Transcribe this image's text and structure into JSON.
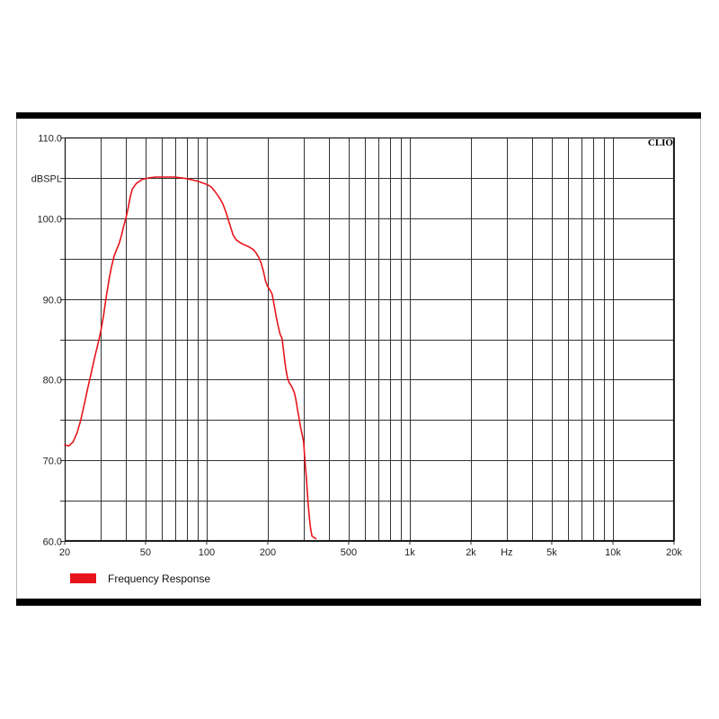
{
  "chart_data": {
    "type": "line",
    "brand": "CLIO",
    "x_scale": "log",
    "xlim": [
      20,
      20000
    ],
    "ylim": [
      60,
      110
    ],
    "ylabel": "dBSPL",
    "x_unit_label": "Hz",
    "grid": true,
    "x_ticks": [
      {
        "value": 20,
        "label": "20"
      },
      {
        "value": 50,
        "label": "50"
      },
      {
        "value": 100,
        "label": "100"
      },
      {
        "value": 200,
        "label": "200"
      },
      {
        "value": 500,
        "label": "500"
      },
      {
        "value": 1000,
        "label": "1k"
      },
      {
        "value": 2000,
        "label": "2k"
      },
      {
        "value": 5000,
        "label": "5k"
      },
      {
        "value": 10000,
        "label": "10k"
      },
      {
        "value": 20000,
        "label": "20k"
      }
    ],
    "x_gridlines": [
      20,
      30,
      40,
      50,
      60,
      70,
      80,
      90,
      100,
      200,
      300,
      400,
      500,
      600,
      700,
      800,
      900,
      1000,
      2000,
      3000,
      4000,
      5000,
      6000,
      7000,
      8000,
      9000,
      10000,
      20000
    ],
    "y_ticks": [
      {
        "value": 110,
        "label": "110.0"
      },
      {
        "value": 105,
        "label": "dBSPL"
      },
      {
        "value": 100,
        "label": "100.0"
      },
      {
        "value": 95,
        "label": ""
      },
      {
        "value": 90,
        "label": "90.0"
      },
      {
        "value": 85,
        "label": ""
      },
      {
        "value": 80,
        "label": "80.0"
      },
      {
        "value": 75,
        "label": ""
      },
      {
        "value": 70,
        "label": "70.0"
      },
      {
        "value": 65,
        "label": ""
      },
      {
        "value": 60,
        "label": "60.0"
      }
    ],
    "legend": {
      "position": "bottom-left"
    },
    "series": [
      {
        "name": "Frequency Response",
        "color": "#e8141b",
        "points": [
          [
            20,
            71.9
          ],
          [
            21,
            71.8
          ],
          [
            22,
            72.3
          ],
          [
            23,
            73.4
          ],
          [
            24,
            75
          ],
          [
            25,
            77
          ],
          [
            26,
            79
          ],
          [
            27,
            80.8
          ],
          [
            28,
            82.6
          ],
          [
            29,
            84.2
          ],
          [
            30,
            85.8
          ],
          [
            31,
            87.8
          ],
          [
            32,
            90.2
          ],
          [
            33,
            92.3
          ],
          [
            34,
            94
          ],
          [
            35,
            95.3
          ],
          [
            36,
            96.1
          ],
          [
            37,
            96.8
          ],
          [
            38,
            97.8
          ],
          [
            39,
            99
          ],
          [
            40,
            100
          ],
          [
            41,
            101.2
          ],
          [
            42,
            102.6
          ],
          [
            43,
            103.6
          ],
          [
            45,
            104.3
          ],
          [
            48,
            104.8
          ],
          [
            52,
            105
          ],
          [
            56,
            105.1
          ],
          [
            60,
            105.1
          ],
          [
            70,
            105.1
          ],
          [
            80,
            104.9
          ],
          [
            90,
            104.6
          ],
          [
            100,
            104.2
          ],
          [
            105,
            103.9
          ],
          [
            110,
            103.3
          ],
          [
            115,
            102.6
          ],
          [
            120,
            101.8
          ],
          [
            125,
            100.6
          ],
          [
            130,
            99.2
          ],
          [
            135,
            97.9
          ],
          [
            140,
            97.3
          ],
          [
            150,
            96.8
          ],
          [
            160,
            96.5
          ],
          [
            170,
            96.1
          ],
          [
            175,
            95.7
          ],
          [
            180,
            95.2
          ],
          [
            185,
            94.5
          ],
          [
            190,
            93.5
          ],
          [
            195,
            92.2
          ],
          [
            200,
            91.5
          ],
          [
            205,
            91.1
          ],
          [
            210,
            90.6
          ],
          [
            215,
            89.2
          ],
          [
            220,
            87.8
          ],
          [
            225,
            86.6
          ],
          [
            230,
            85.6
          ],
          [
            235,
            85.1
          ],
          [
            240,
            83.2
          ],
          [
            245,
            81.4
          ],
          [
            250,
            80.2
          ],
          [
            255,
            79.6
          ],
          [
            260,
            79.3
          ],
          [
            265,
            78.9
          ],
          [
            270,
            78.4
          ],
          [
            275,
            77.5
          ],
          [
            280,
            76.3
          ],
          [
            285,
            75.2
          ],
          [
            290,
            74.1
          ],
          [
            295,
            73.2
          ],
          [
            300,
            72.3
          ],
          [
            305,
            69.8
          ],
          [
            310,
            67.6
          ],
          [
            315,
            65
          ],
          [
            320,
            63
          ],
          [
            325,
            61.5
          ],
          [
            330,
            60.6
          ],
          [
            340,
            60.4
          ],
          [
            345,
            60.3
          ]
        ]
      }
    ]
  }
}
